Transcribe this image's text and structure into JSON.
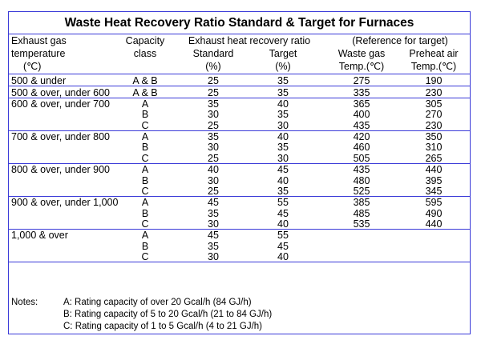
{
  "title": "Waste Heat Recovery Ratio Standard & Target for Furnaces",
  "header": {
    "exhaust_line1": "Exhaust gas",
    "exhaust_line2": "temperature",
    "exhaust_unit": "(℃)",
    "capacity_line1": "Capacity",
    "capacity_line2": "class",
    "recovery_group": "Exhaust heat recovery ratio",
    "standard": "Standard",
    "standard_unit": "(%)",
    "target": "Target",
    "target_unit": "(%)",
    "reference_group": "(Reference for target)",
    "waste_gas_line1": "Waste gas",
    "waste_gas_line2": "Temp.(℃)",
    "preheat_line1": "Preheat air",
    "preheat_line2": "Temp.(℃)"
  },
  "groups": [
    {
      "temp": "500 & under",
      "rows": [
        {
          "cls": "A & B",
          "std": "25",
          "tgt": "35",
          "waste": "275",
          "preheat": "190"
        }
      ]
    },
    {
      "temp": "500 & over, under 600",
      "rows": [
        {
          "cls": "A & B",
          "std": "25",
          "tgt": "35",
          "waste": "335",
          "preheat": "230"
        }
      ]
    },
    {
      "temp": "600 & over, under 700",
      "rows": [
        {
          "cls": "A",
          "std": "35",
          "tgt": "40",
          "waste": "365",
          "preheat": "305"
        },
        {
          "cls": "B",
          "std": "30",
          "tgt": "35",
          "waste": "400",
          "preheat": "270"
        },
        {
          "cls": "C",
          "std": "25",
          "tgt": "30",
          "waste": "435",
          "preheat": "230"
        }
      ]
    },
    {
      "temp": "700 & over, under 800",
      "rows": [
        {
          "cls": "A",
          "std": "35",
          "tgt": "40",
          "waste": "420",
          "preheat": "350"
        },
        {
          "cls": "B",
          "std": "30",
          "tgt": "35",
          "waste": "460",
          "preheat": "310"
        },
        {
          "cls": "C",
          "std": "25",
          "tgt": "30",
          "waste": "505",
          "preheat": "265"
        }
      ]
    },
    {
      "temp": "800 & over, under 900",
      "rows": [
        {
          "cls": "A",
          "std": "40",
          "tgt": "45",
          "waste": "435",
          "preheat": "440"
        },
        {
          "cls": "B",
          "std": "30",
          "tgt": "40",
          "waste": "480",
          "preheat": "395"
        },
        {
          "cls": "C",
          "std": "25",
          "tgt": "35",
          "waste": "525",
          "preheat": "345"
        }
      ]
    },
    {
      "temp": "900 & over, under 1,000",
      "rows": [
        {
          "cls": "A",
          "std": "45",
          "tgt": "55",
          "waste": "385",
          "preheat": "595"
        },
        {
          "cls": "B",
          "std": "35",
          "tgt": "45",
          "waste": "485",
          "preheat": "490"
        },
        {
          "cls": "C",
          "std": "30",
          "tgt": "40",
          "waste": "535",
          "preheat": "440"
        }
      ]
    },
    {
      "temp": "1,000 & over",
      "rows": [
        {
          "cls": "A",
          "std": "45",
          "tgt": "55",
          "waste": "",
          "preheat": ""
        },
        {
          "cls": "B",
          "std": "35",
          "tgt": "45",
          "waste": "",
          "preheat": ""
        },
        {
          "cls": "C",
          "std": "30",
          "tgt": "40",
          "waste": "",
          "preheat": ""
        }
      ]
    }
  ],
  "notes": {
    "label": "Notes:",
    "items": [
      "A: Rating capacity of over 20 Gcal/h (84 GJ/h)",
      "B: Rating capacity of 5 to 20 Gcal/h (21 to 84 GJ/h)",
      "C: Rating capacity of 1 to 5 Gcal/h (4 to 21 GJ/h)"
    ]
  },
  "colors": {
    "rule": "#3a3ad8",
    "text": "#000000",
    "background": "#ffffff"
  }
}
